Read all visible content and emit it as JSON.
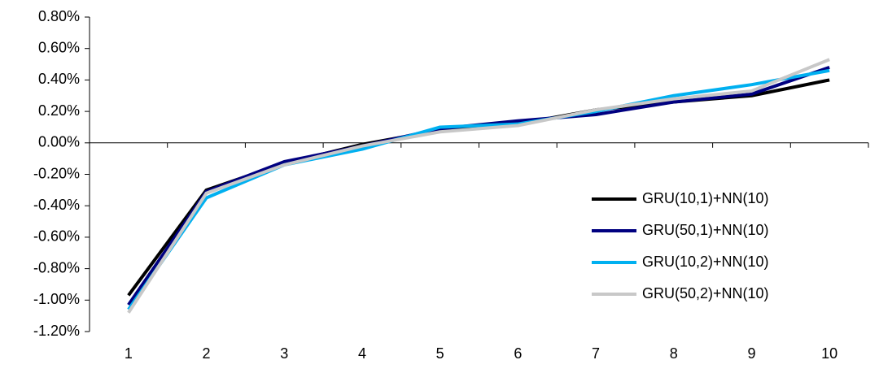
{
  "chart_data": {
    "type": "line",
    "categories": [
      "1",
      "2",
      "3",
      "4",
      "5",
      "6",
      "7",
      "8",
      "9",
      "10"
    ],
    "series": [
      {
        "name": "GRU(10,1)+NN(10)",
        "color": "#000000",
        "values": [
          -0.97,
          -0.3,
          -0.13,
          -0.01,
          0.08,
          0.12,
          0.21,
          0.26,
          0.3,
          0.4
        ]
      },
      {
        "name": "GRU(50,1)+NN(10)",
        "color": "#000080",
        "values": [
          -1.03,
          -0.31,
          -0.12,
          -0.02,
          0.09,
          0.14,
          0.18,
          0.26,
          0.31,
          0.48
        ]
      },
      {
        "name": "GRU(10,2)+NN(10)",
        "color": "#00b0f0",
        "values": [
          -1.06,
          -0.35,
          -0.14,
          -0.04,
          0.1,
          0.12,
          0.2,
          0.3,
          0.37,
          0.46
        ]
      },
      {
        "name": "GRU(50,2)+NN(10)",
        "color": "#c8c8c8",
        "values": [
          -1.08,
          -0.32,
          -0.14,
          -0.02,
          0.07,
          0.11,
          0.21,
          0.28,
          0.33,
          0.53
        ]
      }
    ],
    "ylim": [
      -1.2,
      0.8
    ],
    "yticks": [
      {
        "value": -1.2,
        "label": "-1.20%"
      },
      {
        "value": -1.0,
        "label": "-1.00%"
      },
      {
        "value": -0.8,
        "label": "-0.80%"
      },
      {
        "value": -0.6,
        "label": "-0.60%"
      },
      {
        "value": -0.4,
        "label": "-0.40%"
      },
      {
        "value": -0.2,
        "label": "-0.20%"
      },
      {
        "value": 0,
        "label": "0.00%"
      },
      {
        "value": 0.2,
        "label": "0.20%"
      },
      {
        "value": 0.4,
        "label": "0.40%"
      },
      {
        "value": 0.6,
        "label": "0.60%"
      },
      {
        "value": 0.8,
        "label": "0.80%"
      }
    ],
    "grid": false,
    "legend": "lower right"
  }
}
